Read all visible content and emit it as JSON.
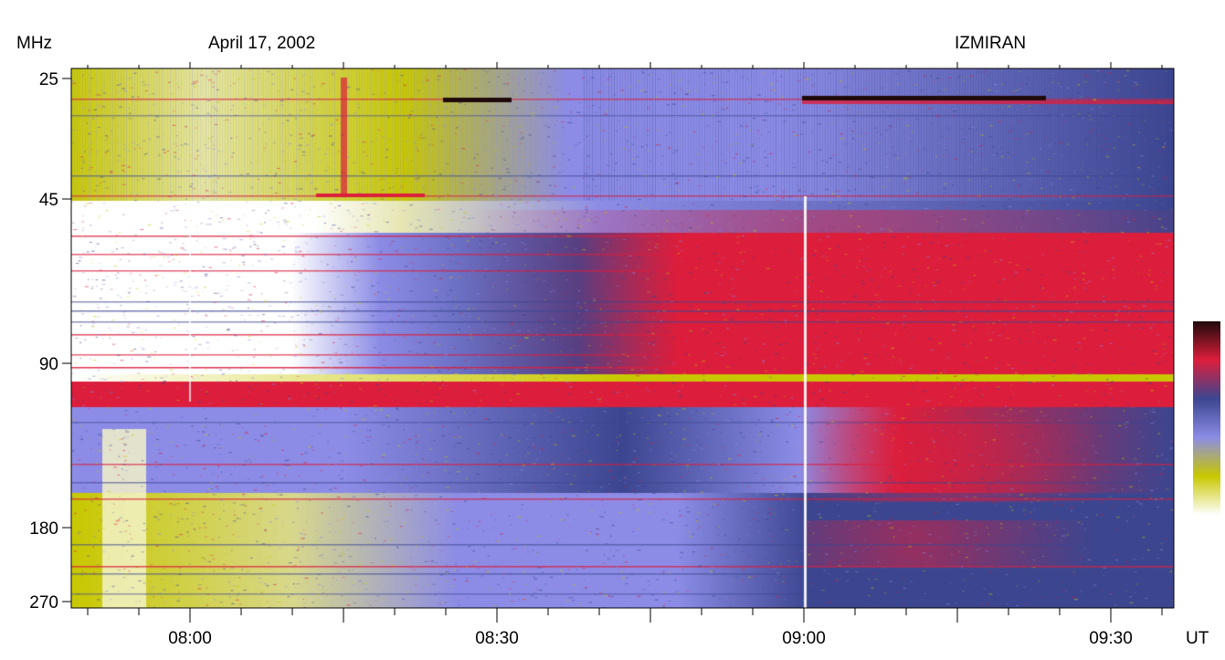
{
  "header": {
    "unit_label": "MHz",
    "date": "April 17, 2002",
    "observatory": "IZMIRAN"
  },
  "chart_data": {
    "type": "heatmap",
    "title": "April 17, 2002",
    "source": "IZMIRAN",
    "ylabel": "MHz",
    "xlabel": "UT",
    "x_start": "07:45",
    "x_end": "09:35",
    "y_ticks": [
      {
        "label": "25",
        "value": 25
      },
      {
        "label": "45",
        "value": 45
      },
      {
        "label": "90",
        "value": 90
      },
      {
        "label": "180",
        "value": 180
      },
      {
        "label": "270",
        "value": 270
      }
    ],
    "x_ticks": [
      {
        "label": "08:00",
        "minutes": 15
      },
      {
        "label": "08:30",
        "minutes": 45
      },
      {
        "label": "09:00",
        "minutes": 75
      },
      {
        "label": "09:30",
        "minutes": 105
      }
    ],
    "colorbar": [
      "#ffffff",
      "#c8c800",
      "#8c8ce6",
      "#3c4690",
      "#dc1e3c",
      "#1e0a0a"
    ],
    "colors": {
      "low": "#ffffff",
      "lowmid": "#c8c800",
      "mid": "#8c8ce6",
      "highmid": "#3c4690",
      "high": "#dc1e3c",
      "max": "#1e0a0a"
    }
  }
}
